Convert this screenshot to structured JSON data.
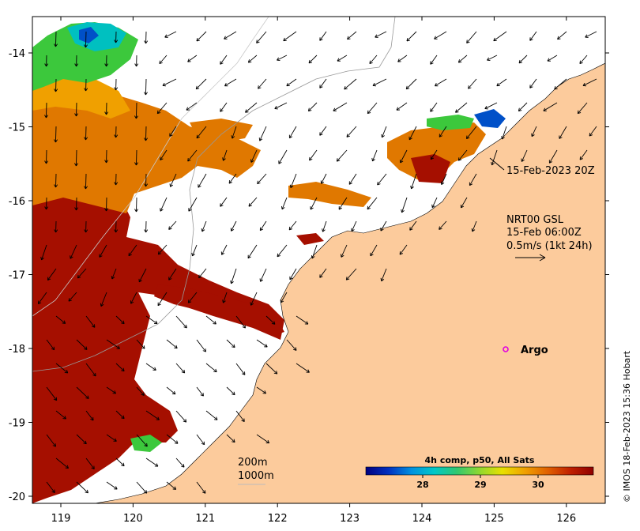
{
  "map": {
    "lon_ticks": [
      "119",
      "120",
      "121",
      "122",
      "123",
      "124",
      "125",
      "126"
    ],
    "lat_ticks": [
      "-14",
      "-15",
      "-16",
      "-17",
      "-18",
      "-19",
      "-20"
    ],
    "colors": {
      "land": "#fccb9c",
      "no_data": "#ffffff",
      "sst_hot": "#a50f00",
      "sst_orange": "#e07800",
      "sst_amber": "#f0a000",
      "sst_yellow": "#e8e000",
      "sst_green": "#3cc83c",
      "sst_cyan": "#00c0c0",
      "sst_blue": "#0040c0",
      "argo_marker": "#e000e0"
    }
  },
  "annotations": {
    "timestamp_callout": "15-Feb-2023 20Z",
    "current_line1": "NRT00 GSL",
    "current_line2": "15-Feb 06:00Z",
    "current_line3": "0.5m/s (1kt 24h)",
    "argo_label": "Argo",
    "contour_200": "200m",
    "contour_1000": "1000m"
  },
  "colorbar": {
    "title": "4h comp, p50, All Sats",
    "ticks": [
      "28",
      "29",
      "30"
    ],
    "stops": [
      "#000080",
      "#0030c0",
      "#0090e0",
      "#00c8c8",
      "#30c870",
      "#90d830",
      "#e8e000",
      "#f0a000",
      "#e06000",
      "#c02000",
      "#900000"
    ]
  },
  "credit": "© IMOS 18-Feb-2023 15:36 Hobart"
}
